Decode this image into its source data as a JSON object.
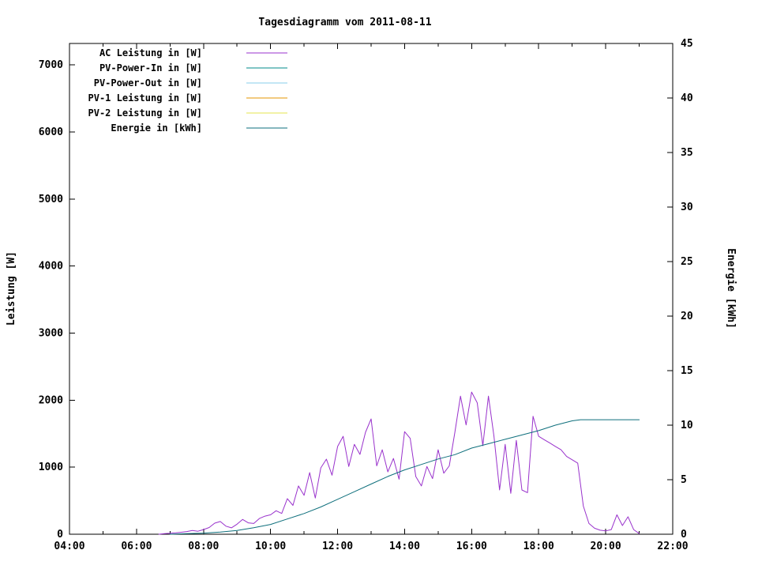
{
  "title": "Tagesdiagramm vom 2011-08-11",
  "chart_data": {
    "type": "line",
    "title": "Tagesdiagramm vom 2011-08-11",
    "xlabel": "",
    "ylabel_left": "Leistung [W]",
    "ylabel_right": "Energie [kWh]",
    "grid": false,
    "legend_position": "top-left",
    "x_range_hours": [
      4,
      22
    ],
    "x_major_ticks": [
      "04:00",
      "06:00",
      "08:00",
      "10:00",
      "12:00",
      "14:00",
      "16:00",
      "18:00",
      "20:00",
      "22:00"
    ],
    "x_minor_step_hours": 1,
    "y_left_range": [
      0,
      7320
    ],
    "y_left_ticks": [
      0,
      1000,
      2000,
      3000,
      4000,
      5000,
      6000,
      7000
    ],
    "y_right_range": [
      0,
      45
    ],
    "y_right_ticks": [
      0,
      5,
      10,
      15,
      20,
      25,
      30,
      35,
      40,
      45
    ],
    "series": [
      {
        "name": "AC Leistung in [W]",
        "color": "#9932cc",
        "axis": "left",
        "points": [
          [
            "06:40",
            0
          ],
          [
            "06:50",
            10
          ],
          [
            "07:00",
            15
          ],
          [
            "07:10",
            20
          ],
          [
            "07:20",
            30
          ],
          [
            "07:30",
            40
          ],
          [
            "07:40",
            55
          ],
          [
            "07:50",
            45
          ],
          [
            "08:00",
            70
          ],
          [
            "08:10",
            100
          ],
          [
            "08:20",
            165
          ],
          [
            "08:30",
            190
          ],
          [
            "08:40",
            120
          ],
          [
            "08:50",
            95
          ],
          [
            "09:00",
            150
          ],
          [
            "09:10",
            220
          ],
          [
            "09:20",
            170
          ],
          [
            "09:30",
            160
          ],
          [
            "09:40",
            235
          ],
          [
            "09:50",
            270
          ],
          [
            "10:00",
            290
          ],
          [
            "10:10",
            350
          ],
          [
            "10:20",
            310
          ],
          [
            "10:30",
            530
          ],
          [
            "10:40",
            430
          ],
          [
            "10:50",
            720
          ],
          [
            "11:00",
            580
          ],
          [
            "11:10",
            920
          ],
          [
            "11:20",
            540
          ],
          [
            "11:30",
            990
          ],
          [
            "11:40",
            1120
          ],
          [
            "11:50",
            880
          ],
          [
            "12:00",
            1310
          ],
          [
            "12:10",
            1460
          ],
          [
            "12:20",
            1010
          ],
          [
            "12:30",
            1340
          ],
          [
            "12:40",
            1190
          ],
          [
            "12:50",
            1520
          ],
          [
            "13:00",
            1720
          ],
          [
            "13:10",
            1020
          ],
          [
            "13:20",
            1260
          ],
          [
            "13:30",
            930
          ],
          [
            "13:40",
            1130
          ],
          [
            "13:50",
            820
          ],
          [
            "14:00",
            1530
          ],
          [
            "14:10",
            1430
          ],
          [
            "14:20",
            860
          ],
          [
            "14:30",
            720
          ],
          [
            "14:40",
            1010
          ],
          [
            "14:50",
            830
          ],
          [
            "15:00",
            1260
          ],
          [
            "15:10",
            910
          ],
          [
            "15:20",
            1020
          ],
          [
            "15:30",
            1520
          ],
          [
            "15:40",
            2060
          ],
          [
            "15:50",
            1630
          ],
          [
            "16:00",
            2120
          ],
          [
            "16:10",
            1960
          ],
          [
            "16:20",
            1320
          ],
          [
            "16:30",
            2060
          ],
          [
            "16:40",
            1460
          ],
          [
            "16:50",
            660
          ],
          [
            "17:00",
            1340
          ],
          [
            "17:10",
            610
          ],
          [
            "17:20",
            1400
          ],
          [
            "17:30",
            660
          ],
          [
            "17:40",
            620
          ],
          [
            "17:50",
            1760
          ],
          [
            "18:00",
            1460
          ],
          [
            "18:10",
            1410
          ],
          [
            "18:20",
            1360
          ],
          [
            "18:30",
            1310
          ],
          [
            "18:40",
            1260
          ],
          [
            "18:50",
            1160
          ],
          [
            "19:00",
            1110
          ],
          [
            "19:10",
            1060
          ],
          [
            "19:20",
            420
          ],
          [
            "19:30",
            160
          ],
          [
            "19:40",
            90
          ],
          [
            "19:50",
            60
          ],
          [
            "20:00",
            50
          ],
          [
            "20:10",
            70
          ],
          [
            "20:20",
            290
          ],
          [
            "20:30",
            130
          ],
          [
            "20:40",
            260
          ],
          [
            "20:50",
            70
          ],
          [
            "21:00",
            10
          ]
        ]
      },
      {
        "name": "PV-Power-In in [W]",
        "color": "#008b8b",
        "axis": "left",
        "points": []
      },
      {
        "name": "PV-Power-Out in [W]",
        "color": "#87ceeb",
        "axis": "left",
        "points": []
      },
      {
        "name": "PV-1 Leistung in [W]",
        "color": "#e69500",
        "axis": "left",
        "points": []
      },
      {
        "name": "PV-2 Leistung in [W]",
        "color": "#e6e64c",
        "axis": "left",
        "points": []
      },
      {
        "name": "Energie in [kWh]",
        "color": "#0e6f7c",
        "axis": "right",
        "points": [
          [
            "07:00",
            0.0
          ],
          [
            "07:30",
            0.05
          ],
          [
            "08:00",
            0.1
          ],
          [
            "08:30",
            0.2
          ],
          [
            "09:00",
            0.35
          ],
          [
            "09:30",
            0.6
          ],
          [
            "10:00",
            0.9
          ],
          [
            "10:30",
            1.4
          ],
          [
            "11:00",
            1.9
          ],
          [
            "11:30",
            2.5
          ],
          [
            "12:00",
            3.2
          ],
          [
            "12:30",
            3.9
          ],
          [
            "13:00",
            4.6
          ],
          [
            "13:30",
            5.3
          ],
          [
            "14:00",
            5.9
          ],
          [
            "14:30",
            6.4
          ],
          [
            "15:00",
            6.9
          ],
          [
            "15:30",
            7.3
          ],
          [
            "16:00",
            7.9
          ],
          [
            "16:30",
            8.3
          ],
          [
            "17:00",
            8.7
          ],
          [
            "17:30",
            9.1
          ],
          [
            "18:00",
            9.5
          ],
          [
            "18:30",
            10.0
          ],
          [
            "19:00",
            10.4
          ],
          [
            "19:15",
            10.5
          ],
          [
            "20:00",
            10.5
          ],
          [
            "21:00",
            10.5
          ]
        ]
      }
    ]
  }
}
